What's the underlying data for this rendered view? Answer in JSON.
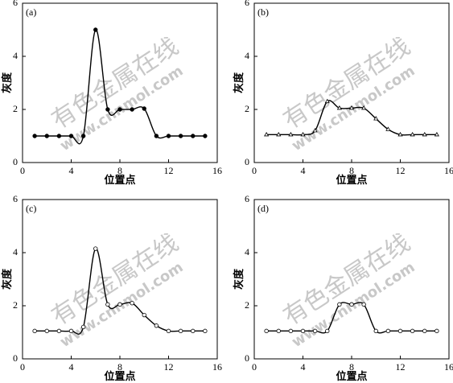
{
  "chart_data": [
    {
      "type": "line",
      "panel_label": "(a)",
      "xlabel": "位置点",
      "ylabel": "灰度",
      "x": [
        1,
        2,
        3,
        4,
        5,
        6,
        7,
        8,
        9,
        10,
        11,
        12,
        13,
        14,
        15
      ],
      "series": [
        {
          "color": "#000000",
          "marker": "filled-circle",
          "values": [
            1,
            1,
            1,
            1,
            1,
            5,
            2,
            2,
            2,
            2.03,
            1,
            1,
            1,
            1,
            1
          ]
        }
      ],
      "xlim": [
        0,
        16
      ],
      "xticks": [
        0,
        4,
        8,
        12,
        16
      ],
      "ylim": [
        0,
        6
      ],
      "yticks": [
        0,
        2,
        4,
        6
      ],
      "watermark": [
        "有色金属在线",
        "www.cnnmol.com"
      ]
    },
    {
      "type": "line",
      "panel_label": "(b)",
      "xlabel": "位置点",
      "ylabel": "灰度",
      "x": [
        1,
        2,
        3,
        4,
        5,
        6,
        7,
        8,
        9,
        10,
        11,
        12,
        13,
        14,
        15
      ],
      "series": [
        {
          "color": "#000000",
          "marker": "triangle",
          "values": [
            1.05,
            1.05,
            1.05,
            1.05,
            1.2,
            2.3,
            2.05,
            2.05,
            2.05,
            1.65,
            1.25,
            1.05,
            1.05,
            1.05,
            1.05
          ]
        }
      ],
      "xlim": [
        0,
        16
      ],
      "xticks": [
        0,
        4,
        8,
        12,
        16
      ],
      "ylim": [
        0,
        6
      ],
      "yticks": [
        0,
        2,
        4,
        6
      ],
      "watermark": [
        "有色金属在线",
        "www.cnnmol.com"
      ]
    },
    {
      "type": "line",
      "panel_label": "(c)",
      "xlabel": "位置点",
      "ylabel": "灰度",
      "x": [
        1,
        2,
        3,
        4,
        5,
        6,
        7,
        8,
        9,
        10,
        11,
        12,
        13,
        14,
        15
      ],
      "series": [
        {
          "color": "#000000",
          "marker": "circle",
          "values": [
            1.05,
            1.05,
            1.05,
            1.05,
            1.2,
            4.15,
            2.05,
            2.05,
            2.1,
            1.65,
            1.25,
            1.05,
            1.05,
            1.05,
            1.05
          ]
        }
      ],
      "xlim": [
        0,
        16
      ],
      "xticks": [
        0,
        4,
        8,
        12,
        16
      ],
      "ylim": [
        0,
        6
      ],
      "yticks": [
        0,
        2,
        4,
        6
      ],
      "watermark": [
        "有色金属在线",
        "www.cnnmol.com"
      ]
    },
    {
      "type": "line",
      "panel_label": "(d)",
      "xlabel": "位置点",
      "ylabel": "灰度",
      "x": [
        1,
        2,
        3,
        4,
        5,
        6,
        7,
        8,
        9,
        10,
        11,
        12,
        13,
        14,
        15
      ],
      "series": [
        {
          "color": "#000000",
          "marker": "circle",
          "values": [
            1.05,
            1.05,
            1.05,
            1.05,
            1.05,
            1.05,
            2.05,
            2.05,
            2.05,
            1.05,
            1.05,
            1.05,
            1.05,
            1.05,
            1.05
          ]
        }
      ],
      "xlim": [
        0,
        16
      ],
      "xticks": [
        0,
        4,
        8,
        12,
        16
      ],
      "ylim": [
        0,
        6
      ],
      "yticks": [
        0,
        2,
        4,
        6
      ],
      "watermark": [
        "有色金属在线",
        "www.cnnmol.com"
      ]
    }
  ]
}
